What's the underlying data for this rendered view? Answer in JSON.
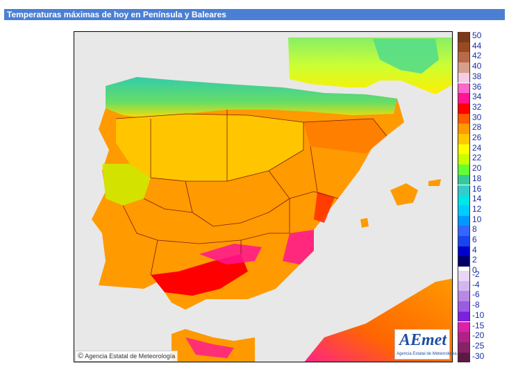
{
  "title": "Temperaturas máximas de hoy en Península y Baleares",
  "credit": {
    "copyright_symbol": "©",
    "text": "Agencia Estatal de Meteorología"
  },
  "logo": {
    "mark": "AEmet",
    "subtitle": "Agencia Estatal de Meteorología"
  },
  "legend": {
    "positive": [
      {
        "label": "50",
        "color": "#7a3a1c"
      },
      {
        "label": "44",
        "color": "#9a4a20"
      },
      {
        "label": "42",
        "color": "#b86a4a"
      },
      {
        "label": "40",
        "color": "#d6a08a"
      },
      {
        "label": "38",
        "color": "#f6cbe6"
      },
      {
        "label": "36",
        "color": "#ff66cc"
      },
      {
        "label": "34",
        "color": "#ff1493"
      },
      {
        "label": "32",
        "color": "#ff0000"
      },
      {
        "label": "30",
        "color": "#ff5a00"
      },
      {
        "label": "28",
        "color": "#ff9a00"
      },
      {
        "label": "26",
        "color": "#ffc800"
      },
      {
        "label": "24",
        "color": "#ffff00"
      },
      {
        "label": "22",
        "color": "#c8ff00"
      },
      {
        "label": "20",
        "color": "#66ff33"
      },
      {
        "label": "18",
        "color": "#33cc99"
      },
      {
        "label": "16",
        "color": "#33cccc"
      },
      {
        "label": "14",
        "color": "#00e5e5"
      },
      {
        "label": "12",
        "color": "#00ccff"
      },
      {
        "label": "10",
        "color": "#0099ff"
      },
      {
        "label": "8",
        "color": "#3366ff"
      },
      {
        "label": "6",
        "color": "#1a44ee"
      },
      {
        "label": "4",
        "color": "#0000cc"
      },
      {
        "label": "2",
        "color": "#000066"
      },
      {
        "label": "0",
        "color": "#ffffff"
      }
    ],
    "negative": [
      {
        "label": "-2",
        "color": "#e8d6f6"
      },
      {
        "label": "-4",
        "color": "#d4b6ee"
      },
      {
        "label": "-6",
        "color": "#b888e6"
      },
      {
        "label": "-8",
        "color": "#9a5ce0"
      },
      {
        "label": "-10",
        "color": "#7a22dd"
      },
      {
        "label": "-15",
        "color": "#dd22aa"
      },
      {
        "label": "-20",
        "color": "#b02288"
      },
      {
        "label": "-25",
        "color": "#882266"
      },
      {
        "label": "-30",
        "color": "#5a1a44"
      }
    ]
  },
  "map": {
    "sea_color": "#e8e8e8",
    "border_color": "#7a1a10"
  }
}
